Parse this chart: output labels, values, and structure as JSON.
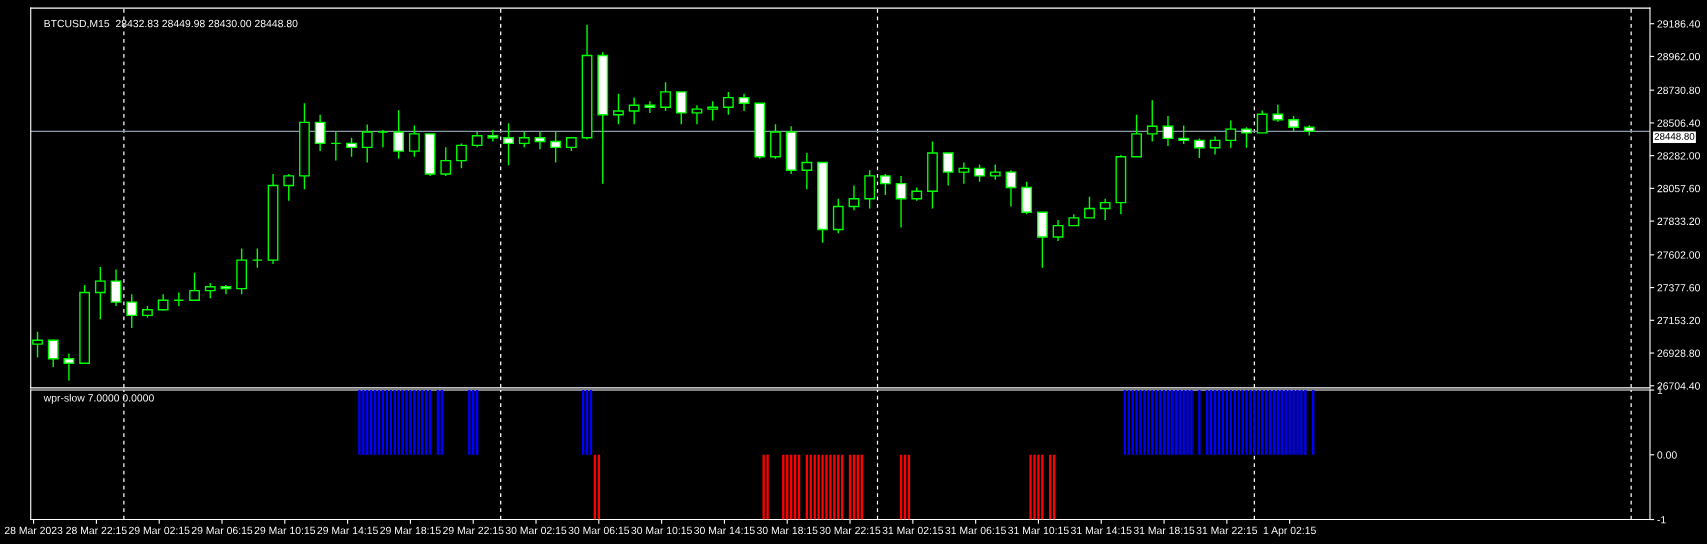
{
  "chart_data": [
    {
      "type": "candlestick",
      "title": "BTCUSD,M15  28432.83 28449.98 28430.00 28448.80",
      "color": "#00ff00",
      "x": [
        "2023-03-28T18:30",
        "2023-03-28T19:30",
        "2023-03-28T20:30",
        "2023-03-28T21:30",
        "2023-03-28T22:30",
        "2023-03-28T23:30",
        "2023-03-29T00:30",
        "2023-03-29T01:30",
        "2023-03-29T02:30",
        "2023-03-29T03:30",
        "2023-03-29T04:30",
        "2023-03-29T05:30",
        "2023-03-29T06:30",
        "2023-03-29T07:30",
        "2023-03-29T08:30",
        "2023-03-29T09:30",
        "2023-03-29T10:30",
        "2023-03-29T11:30",
        "2023-03-29T12:30",
        "2023-03-29T13:30",
        "2023-03-29T14:30",
        "2023-03-29T15:30",
        "2023-03-29T16:30",
        "2023-03-29T17:30",
        "2023-03-29T18:30",
        "2023-03-29T19:30",
        "2023-03-29T20:30",
        "2023-03-29T21:30",
        "2023-03-29T22:30",
        "2023-03-29T23:30",
        "2023-03-30T00:30",
        "2023-03-30T01:30",
        "2023-03-30T02:30",
        "2023-03-30T03:30",
        "2023-03-30T04:30",
        "2023-03-30T05:30",
        "2023-03-30T06:30",
        "2023-03-30T07:30",
        "2023-03-30T08:30",
        "2023-03-30T09:30",
        "2023-03-30T10:30",
        "2023-03-30T11:30",
        "2023-03-30T12:30",
        "2023-03-30T13:30",
        "2023-03-30T14:30",
        "2023-03-30T15:30",
        "2023-03-30T16:30",
        "2023-03-30T17:30",
        "2023-03-30T18:30",
        "2023-03-30T19:30",
        "2023-03-30T20:30",
        "2023-03-30T21:30",
        "2023-03-30T22:30",
        "2023-03-30T23:30",
        "2023-03-31T00:30",
        "2023-03-31T01:30",
        "2023-03-31T02:30",
        "2023-03-31T03:30",
        "2023-03-31T04:30",
        "2023-03-31T05:30",
        "2023-03-31T06:30",
        "2023-03-31T07:30",
        "2023-03-31T08:30",
        "2023-03-31T09:30",
        "2023-03-31T10:30",
        "2023-03-31T11:30",
        "2023-03-31T12:30",
        "2023-03-31T13:30",
        "2023-03-31T14:30",
        "2023-03-31T15:30",
        "2023-03-31T16:30",
        "2023-03-31T17:30",
        "2023-03-31T18:30",
        "2023-03-31T19:30",
        "2023-03-31T20:30",
        "2023-03-31T21:30",
        "2023-03-31T22:30",
        "2023-03-31T23:30",
        "2023-04-01T00:30",
        "2023-04-01T01:30",
        "2023-04-01T02:30",
        "2023-04-01T03:30"
      ],
      "ohlc": [
        [
          26990,
          27074,
          26898,
          27016
        ],
        [
          27016,
          27021,
          26833,
          26890
        ],
        [
          26890,
          26925,
          26741,
          26859
        ],
        [
          26859,
          27396,
          26859,
          27344
        ],
        [
          27344,
          27519,
          27160,
          27422
        ],
        [
          27422,
          27501,
          27252,
          27278
        ],
        [
          27278,
          27331,
          27100,
          27187
        ],
        [
          27187,
          27252,
          27173,
          27226
        ],
        [
          27226,
          27331,
          27221,
          27291
        ],
        [
          27291,
          27344,
          27252,
          27291
        ],
        [
          27291,
          27480,
          27291,
          27357
        ],
        [
          27357,
          27409,
          27305,
          27383
        ],
        [
          27383,
          27396,
          27331,
          27370
        ],
        [
          27370,
          27645,
          27331,
          27566
        ],
        [
          27566,
          27645,
          27514,
          27566
        ],
        [
          27566,
          28156,
          27540,
          28077
        ],
        [
          28077,
          28156,
          27973,
          28143
        ],
        [
          28143,
          28641,
          28051,
          28510
        ],
        [
          28510,
          28562,
          28313,
          28366
        ],
        [
          28366,
          28444,
          28248,
          28366
        ],
        [
          28366,
          28405,
          28274,
          28339
        ],
        [
          28339,
          28496,
          28235,
          28444
        ],
        [
          28444,
          28457,
          28339,
          28444
        ],
        [
          28444,
          28593,
          28261,
          28313
        ],
        [
          28313,
          28489,
          28274,
          28431
        ],
        [
          28431,
          28431,
          28143,
          28156
        ],
        [
          28156,
          28339,
          28143,
          28248
        ],
        [
          28248,
          28366,
          28195,
          28352
        ],
        [
          28352,
          28444,
          28340,
          28418
        ],
        [
          28418,
          28457,
          28379,
          28405
        ],
        [
          28405,
          28504,
          28216,
          28366
        ],
        [
          28366,
          28444,
          28339,
          28405
        ],
        [
          28405,
          28444,
          28326,
          28379
        ],
        [
          28379,
          28444,
          28235,
          28339
        ],
        [
          28339,
          28405,
          28313,
          28405
        ],
        [
          28405,
          29180,
          28392,
          28968
        ],
        [
          28968,
          28990,
          28090,
          28562
        ],
        [
          28562,
          28706,
          28497,
          28588
        ],
        [
          28588,
          28680,
          28497,
          28627
        ],
        [
          28627,
          28654,
          28575,
          28614
        ],
        [
          28614,
          28785,
          28588,
          28719
        ],
        [
          28719,
          28719,
          28497,
          28575
        ],
        [
          28575,
          28627,
          28497,
          28601
        ],
        [
          28601,
          28654,
          28523,
          28614
        ],
        [
          28614,
          28719,
          28562,
          28680
        ],
        [
          28680,
          28706,
          28588,
          28641
        ],
        [
          28641,
          28641,
          28261,
          28274
        ],
        [
          28274,
          28497,
          28261,
          28444
        ],
        [
          28444,
          28483,
          28156,
          28182
        ],
        [
          28182,
          28300,
          28051,
          28235
        ],
        [
          28235,
          28235,
          27684,
          27776
        ],
        [
          27776,
          27986,
          27750,
          27933
        ],
        [
          27933,
          28077,
          27907,
          27986
        ],
        [
          27986,
          28182,
          27920,
          28143
        ],
        [
          28143,
          28156,
          28012,
          28090
        ],
        [
          28090,
          28143,
          27789,
          27986
        ],
        [
          27986,
          28064,
          27973,
          28038
        ],
        [
          28038,
          28379,
          27920,
          28300
        ],
        [
          28300,
          28300,
          28077,
          28169
        ],
        [
          28169,
          28235,
          28090,
          28195
        ],
        [
          28195,
          28222,
          28103,
          28143
        ],
        [
          28143,
          28222,
          28116,
          28169
        ],
        [
          28169,
          28182,
          27933,
          28064
        ],
        [
          28064,
          28103,
          27880,
          27894
        ],
        [
          27894,
          27894,
          27514,
          27724
        ],
        [
          27724,
          27841,
          27697,
          27802
        ],
        [
          27802,
          27881,
          27802,
          27855
        ],
        [
          27855,
          28000,
          27855,
          27920
        ],
        [
          27920,
          27986,
          27841,
          27960
        ],
        [
          27960,
          28287,
          27881,
          28274
        ],
        [
          28274,
          28562,
          28274,
          28431
        ],
        [
          28431,
          28661,
          28379,
          28483
        ],
        [
          28483,
          28553,
          28348,
          28400
        ],
        [
          28400,
          28489,
          28361,
          28387
        ],
        [
          28387,
          28400,
          28266,
          28336
        ],
        [
          28336,
          28413,
          28290,
          28387
        ],
        [
          28387,
          28523,
          28336,
          28464
        ],
        [
          28464,
          28477,
          28336,
          28438
        ],
        [
          28438,
          28592,
          28438,
          28566
        ],
        [
          28566,
          28630,
          28515,
          28528
        ],
        [
          28528,
          28553,
          28451,
          28477
        ],
        [
          28477,
          28490,
          28420,
          28448.8
        ]
      ],
      "xlim": [
        "2023-03-28T18:04",
        "2023-04-02T01:12"
      ],
      "ylim": [
        26690,
        29293
      ],
      "yticks": [
        {
          "value": 29186.4,
          "label": "29186.40"
        },
        {
          "value": 28962.0,
          "label": "28962.00"
        },
        {
          "value": 28730.8,
          "label": "28730.80"
        },
        {
          "value": 28506.4,
          "label": "28506.40"
        },
        {
          "value": 28282.0,
          "label": "28282.00"
        },
        {
          "value": 28057.6,
          "label": "28057.60"
        },
        {
          "value": 27833.2,
          "label": "27833.20"
        },
        {
          "value": 27602.0,
          "label": "27602.00"
        },
        {
          "value": 27377.6,
          "label": "27377.60"
        },
        {
          "value": 27153.2,
          "label": "27153.20"
        },
        {
          "value": 26928.8,
          "label": "26928.80"
        },
        {
          "value": 26704.4,
          "label": "26704.40"
        }
      ],
      "tick_labels": "y",
      "ref_lines": [
        {
          "axis": "y",
          "value": 28448.8,
          "label": "28448.80",
          "color": "#8a9aa8",
          "line_style": "solid"
        },
        {
          "axis": "x",
          "value": "2023-03-29T00:00",
          "label": null,
          "color": "#ffffff",
          "line_style": "dashed"
        },
        {
          "axis": "x",
          "value": "2023-03-30T00:00",
          "label": null,
          "color": "#ffffff",
          "line_style": "dashed"
        },
        {
          "axis": "x",
          "value": "2023-03-31T00:00",
          "label": null,
          "color": "#ffffff",
          "line_style": "dashed"
        },
        {
          "axis": "x",
          "value": "2023-04-01T00:00",
          "label": null,
          "color": "#ffffff",
          "line_style": "dashed"
        },
        {
          "axis": "x",
          "value": "2023-04-02T00:00",
          "label": null,
          "color": "#ffffff",
          "line_style": "dashed"
        }
      ]
    },
    {
      "type": "bar",
      "title": "wpr-slow 7.0000 0.0000",
      "series": [
        {
          "color": "#0000ff",
          "x": [
            "2023-03-29T15:00",
            "2023-03-29T15:15",
            "2023-03-29T15:30",
            "2023-03-29T15:45",
            "2023-03-29T16:00",
            "2023-03-29T16:15",
            "2023-03-29T16:30",
            "2023-03-29T16:45",
            "2023-03-29T17:00",
            "2023-03-29T17:15",
            "2023-03-29T17:30",
            "2023-03-29T17:45",
            "2023-03-29T18:00",
            "2023-03-29T18:15",
            "2023-03-29T18:30",
            "2023-03-29T18:45",
            "2023-03-29T19:00",
            "2023-03-29T19:15",
            "2023-03-29T19:30",
            "2023-03-29T20:00",
            "2023-03-29T20:15",
            "2023-03-29T22:00",
            "2023-03-29T22:15",
            "2023-03-29T22:30",
            "2023-03-30T05:15",
            "2023-03-30T05:30",
            "2023-03-30T05:45",
            "2023-03-31T15:45",
            "2023-03-31T16:00",
            "2023-03-31T16:15",
            "2023-03-31T16:30",
            "2023-03-31T16:45",
            "2023-03-31T17:00",
            "2023-03-31T17:15",
            "2023-03-31T17:30",
            "2023-03-31T17:45",
            "2023-03-31T18:00",
            "2023-03-31T18:15",
            "2023-03-31T18:30",
            "2023-03-31T18:45",
            "2023-03-31T19:00",
            "2023-03-31T19:15",
            "2023-03-31T19:30",
            "2023-03-31T19:45",
            "2023-03-31T20:00",
            "2023-03-31T20:30",
            "2023-03-31T21:00",
            "2023-03-31T21:15",
            "2023-03-31T21:30",
            "2023-03-31T21:45",
            "2023-03-31T22:00",
            "2023-03-31T22:15",
            "2023-03-31T22:30",
            "2023-03-31T22:45",
            "2023-03-31T23:00",
            "2023-03-31T23:15",
            "2023-03-31T23:30",
            "2023-03-31T23:45",
            "2023-04-01T00:00",
            "2023-04-01T00:15",
            "2023-04-01T00:30",
            "2023-04-01T00:45",
            "2023-04-01T01:00",
            "2023-04-01T01:15",
            "2023-04-01T01:30",
            "2023-04-01T01:45",
            "2023-04-01T02:00",
            "2023-04-01T02:15",
            "2023-04-01T02:30",
            "2023-04-01T02:45",
            "2023-04-01T03:00",
            "2023-04-01T03:15",
            "2023-04-01T03:45"
          ],
          "values": [
            1,
            1,
            1,
            1,
            1,
            1,
            1,
            1,
            1,
            1,
            1,
            1,
            1,
            1,
            1,
            1,
            1,
            1,
            1,
            1,
            1,
            1,
            1,
            1,
            1,
            1,
            1,
            1,
            1,
            1,
            1,
            1,
            1,
            1,
            1,
            1,
            1,
            1,
            1,
            1,
            1,
            1,
            1,
            1,
            1,
            1,
            1,
            1,
            1,
            1,
            1,
            1,
            1,
            1,
            1,
            1,
            1,
            1,
            1,
            1,
            1,
            1,
            1,
            1,
            1,
            1,
            1,
            1,
            1,
            1,
            1,
            1,
            1
          ]
        },
        {
          "color": "#ff0000",
          "x": [
            "2023-03-30T06:00",
            "2023-03-30T06:15",
            "2023-03-30T16:45",
            "2023-03-30T17:00",
            "2023-03-30T18:00",
            "2023-03-30T18:15",
            "2023-03-30T18:30",
            "2023-03-30T18:45",
            "2023-03-30T19:00",
            "2023-03-30T19:30",
            "2023-03-30T19:45",
            "2023-03-30T20:00",
            "2023-03-30T20:15",
            "2023-03-30T20:30",
            "2023-03-30T20:45",
            "2023-03-30T21:00",
            "2023-03-30T21:15",
            "2023-03-30T21:30",
            "2023-03-30T21:45",
            "2023-03-30T22:15",
            "2023-03-30T22:30",
            "2023-03-30T22:45",
            "2023-03-30T23:00",
            "2023-03-31T01:30",
            "2023-03-31T01:45",
            "2023-03-31T02:00",
            "2023-03-31T09:45",
            "2023-03-31T10:00",
            "2023-03-31T10:15",
            "2023-03-31T10:30",
            "2023-03-31T11:00",
            "2023-03-31T11:15"
          ],
          "values": [
            -1,
            -1,
            -1,
            -1,
            -1,
            -1,
            -1,
            -1,
            -1,
            -1,
            -1,
            -1,
            -1,
            -1,
            -1,
            -1,
            -1,
            -1,
            -1,
            -1,
            -1,
            -1,
            -1,
            -1,
            -1,
            -1,
            -1,
            -1,
            -1,
            -1,
            -1,
            -1
          ]
        }
      ],
      "xlim": [
        "2023-03-28T18:04",
        "2023-04-02T01:12"
      ],
      "ylim": [
        -1,
        1
      ],
      "yticks": [
        {
          "value": 1,
          "label": "1"
        },
        {
          "value": 0,
          "label": "0.00"
        },
        {
          "value": -1,
          "label": "-1"
        }
      ],
      "xticks": [
        {
          "value": "2023-03-28T18:15",
          "label": "28 Mar 2023"
        },
        {
          "value": "2023-03-28T22:15",
          "label": "28 Mar 22:15"
        },
        {
          "value": "2023-03-29T02:15",
          "label": "29 Mar 02:15"
        },
        {
          "value": "2023-03-29T06:15",
          "label": "29 Mar 06:15"
        },
        {
          "value": "2023-03-29T10:15",
          "label": "29 Mar 10:15"
        },
        {
          "value": "2023-03-29T14:15",
          "label": "29 Mar 14:15"
        },
        {
          "value": "2023-03-29T18:15",
          "label": "29 Mar 18:15"
        },
        {
          "value": "2023-03-29T22:15",
          "label": "29 Mar 22:15"
        },
        {
          "value": "2023-03-30T02:15",
          "label": "30 Mar 02:15"
        },
        {
          "value": "2023-03-30T06:15",
          "label": "30 Mar 06:15"
        },
        {
          "value": "2023-03-30T10:15",
          "label": "30 Mar 10:15"
        },
        {
          "value": "2023-03-30T14:15",
          "label": "30 Mar 14:15"
        },
        {
          "value": "2023-03-30T18:15",
          "label": "30 Mar 18:15"
        },
        {
          "value": "2023-03-30T22:15",
          "label": "30 Mar 22:15"
        },
        {
          "value": "2023-03-31T02:15",
          "label": "31 Mar 02:15"
        },
        {
          "value": "2023-03-31T06:15",
          "label": "31 Mar 06:15"
        },
        {
          "value": "2023-03-31T10:15",
          "label": "31 Mar 10:15"
        },
        {
          "value": "2023-03-31T14:15",
          "label": "31 Mar 14:15"
        },
        {
          "value": "2023-03-31T18:15",
          "label": "31 Mar 18:15"
        },
        {
          "value": "2023-03-31T22:15",
          "label": "31 Mar 22:15"
        },
        {
          "value": "2023-04-01T02:15",
          "label": "1 Apr 02:15"
        }
      ],
      "ref_lines": [
        {
          "axis": "x",
          "value": "2023-03-29T00:00",
          "label": null,
          "color": "#ffffff",
          "line_style": "dashed"
        },
        {
          "axis": "x",
          "value": "2023-03-30T00:00",
          "label": null,
          "color": "#ffffff",
          "line_style": "dashed"
        },
        {
          "axis": "x",
          "value": "2023-03-31T00:00",
          "label": null,
          "color": "#ffffff",
          "line_style": "dashed"
        },
        {
          "axis": "x",
          "value": "2023-04-01T00:00",
          "label": null,
          "color": "#ffffff",
          "line_style": "dashed"
        },
        {
          "axis": "x",
          "value": "2023-04-02T00:00",
          "label": null,
          "color": "#ffffff",
          "line_style": "dashed"
        }
      ]
    }
  ]
}
